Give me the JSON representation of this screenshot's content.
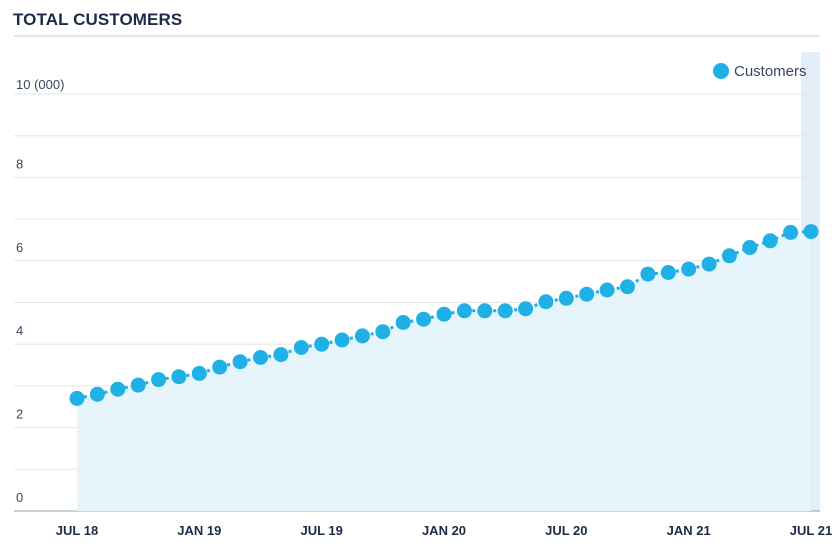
{
  "chart_data": {
    "type": "line",
    "title": "TOTAL CUSTOMERS",
    "ylabel": "",
    "xlabel": "",
    "y_top_label": "10 (000)",
    "ylim": [
      0,
      10
    ],
    "yticks": [
      0,
      2,
      4,
      6,
      8
    ],
    "grid": true,
    "legend": "top-right",
    "x_tick_labels": [
      "JUL 18",
      "JAN 19",
      "JUL 19",
      "JAN 20",
      "JUL 20",
      "JAN 21",
      "JUL 21"
    ],
    "x_range_months": [
      "2018-07",
      "2021-07"
    ],
    "colors": {
      "series": "#1fb0e6",
      "fill": "#e6f5fc",
      "grid": "#e3e6ec",
      "highlight": "#e3eef8"
    },
    "series": [
      {
        "name": "Customers",
        "x": [
          "2018-07",
          "2018-08",
          "2018-09",
          "2018-10",
          "2018-11",
          "2018-12",
          "2019-01",
          "2019-02",
          "2019-03",
          "2019-04",
          "2019-05",
          "2019-06",
          "2019-07",
          "2019-08",
          "2019-09",
          "2019-10",
          "2019-11",
          "2019-12",
          "2020-01",
          "2020-02",
          "2020-03",
          "2020-04",
          "2020-05",
          "2020-06",
          "2020-07",
          "2020-08",
          "2020-09",
          "2020-10",
          "2020-11",
          "2020-12",
          "2021-01",
          "2021-02",
          "2021-03",
          "2021-04",
          "2021-05",
          "2021-06",
          "2021-07"
        ],
        "values": [
          2.7,
          2.8,
          2.92,
          3.02,
          3.15,
          3.22,
          3.3,
          3.45,
          3.58,
          3.68,
          3.75,
          3.92,
          4.0,
          4.1,
          4.2,
          4.3,
          4.52,
          4.6,
          4.72,
          4.8,
          4.8,
          4.8,
          4.85,
          5.02,
          5.1,
          5.2,
          5.3,
          5.38,
          5.68,
          5.72,
          5.8,
          5.92,
          6.12,
          6.32,
          6.48,
          6.68,
          6.7
        ]
      }
    ]
  }
}
